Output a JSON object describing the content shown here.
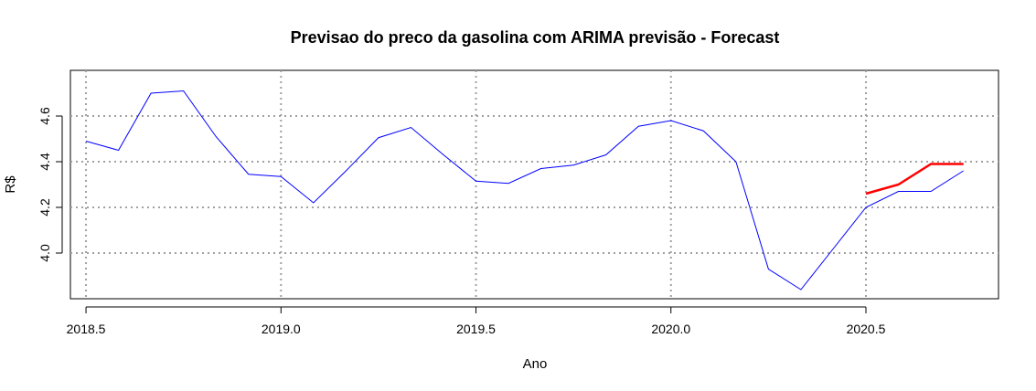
{
  "chart_data": {
    "type": "line",
    "title": "Previsao do preco da gasolina com ARIMA previsão - Forecast",
    "xlabel": "Ano",
    "ylabel": "R$",
    "xlim": [
      2018.46,
      2020.84
    ],
    "ylim": [
      3.8,
      4.8
    ],
    "x_ticks": [
      2018.5,
      2019.0,
      2019.5,
      2020.0,
      2020.5
    ],
    "x_tick_labels": [
      "2018.5",
      "2019.0",
      "2019.5",
      "2020.0",
      "2020.5"
    ],
    "y_ticks": [
      4.0,
      4.2,
      4.4,
      4.6
    ],
    "y_tick_labels": [
      "4.0",
      "4.2",
      "4.4",
      "4.6"
    ],
    "grid": true,
    "series": [
      {
        "color": "#0000ff",
        "x": [
          2018.5,
          2018.5833,
          2018.6667,
          2018.75,
          2018.8333,
          2018.9167,
          2019.0,
          2019.0833,
          2019.1667,
          2019.25,
          2019.3333,
          2019.4167,
          2019.5,
          2019.5833,
          2019.6667,
          2019.75,
          2019.8333,
          2019.9167,
          2020.0,
          2020.0833,
          2020.1667,
          2020.25,
          2020.3333,
          2020.4167,
          2020.5,
          2020.5833,
          2020.6667,
          2020.75
        ],
        "values": [
          4.49,
          4.45,
          4.7,
          4.71,
          4.51,
          4.345,
          4.335,
          4.22,
          4.36,
          4.505,
          4.55,
          4.43,
          4.315,
          4.305,
          4.37,
          4.385,
          4.43,
          4.555,
          4.58,
          4.535,
          4.4,
          3.93,
          3.84,
          4.02,
          4.2,
          4.27,
          4.27,
          4.36
        ]
      },
      {
        "color": "#ff0000",
        "x": [
          2020.5,
          2020.5833,
          2020.6667,
          2020.75
        ],
        "values": [
          4.26,
          4.3,
          4.39,
          4.39
        ]
      }
    ]
  }
}
